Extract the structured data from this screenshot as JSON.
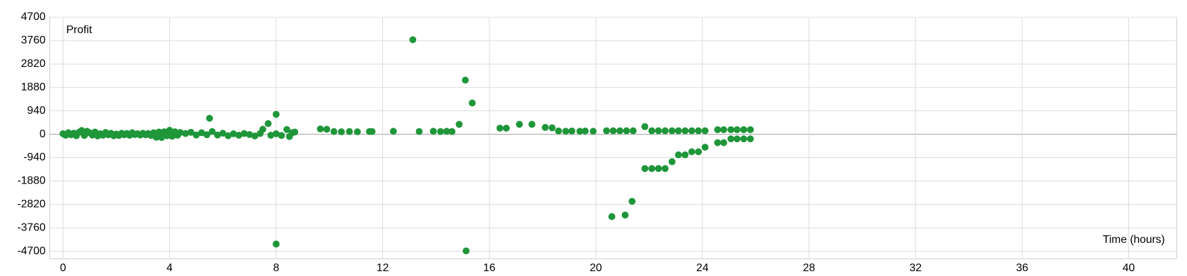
{
  "chart_data": {
    "type": "scatter",
    "y_label": "Profit",
    "x_label": "Time (hours)",
    "color": "#1e9639",
    "grid": true,
    "xlim": [
      -0.5,
      41.8
    ],
    "xticks": [
      0,
      4,
      8,
      12,
      16,
      20,
      24,
      28,
      32,
      36,
      40
    ],
    "ylim": [
      -5000,
      4700
    ],
    "yticks": [
      -4700,
      -3760,
      -2820,
      -1880,
      -940,
      0,
      940,
      1880,
      2820,
      3760,
      4700
    ],
    "x": [
      0,
      0.1,
      0.2,
      0.3,
      0.4,
      0.5,
      0.6,
      0.7,
      0.8,
      0.9,
      1.0,
      1.1,
      1.2,
      1.3,
      1.4,
      1.5,
      1.6,
      1.7,
      1.8,
      1.9,
      2.0,
      2.1,
      2.2,
      2.3,
      2.4,
      2.5,
      2.6,
      2.7,
      2.8,
      2.9,
      3.0,
      3.1,
      3.2,
      3.3,
      3.4,
      3.5,
      3.6,
      3.7,
      3.8,
      3.9,
      4.0,
      4.1,
      4.2,
      4.3,
      4.4,
      4.6,
      4.8,
      5.0,
      5.2,
      5.4,
      5.5,
      5.6,
      5.8,
      6.0,
      6.2,
      6.4,
      6.6,
      6.8,
      7.0,
      7.2,
      7.4,
      7.5,
      7.7,
      7.8,
      8.0,
      8.0,
      8.0,
      8.2,
      8.4,
      8.5,
      8.6,
      8.7,
      9.66,
      9.9,
      10.17,
      10.45,
      10.75,
      11.05,
      11.5,
      11.6,
      12.4,
      13.13,
      13.37,
      13.9,
      14.17,
      14.4,
      14.6,
      14.87,
      15.1,
      15.13,
      15.36,
      16.4,
      16.64,
      17.13,
      17.6,
      18.1,
      18.36,
      18.6,
      18.87,
      19.1,
      19.4,
      19.6,
      19.9,
      20.4,
      20.6,
      20.65,
      20.9,
      21.1,
      21.15,
      21.36,
      21.4,
      21.84,
      21.84,
      22.1,
      22.1,
      22.35,
      22.35,
      22.6,
      22.6,
      22.86,
      22.86,
      23.1,
      23.1,
      23.35,
      23.35,
      23.6,
      23.6,
      23.85,
      23.85,
      24.1,
      24.1,
      24.57,
      24.57,
      24.8,
      24.8,
      25.07,
      25.07,
      25.3,
      25.3,
      25.55,
      25.55,
      25.8,
      25.8
    ],
    "values": [
      20,
      -40,
      60,
      -20,
      40,
      -60,
      80,
      150,
      -50,
      120,
      60,
      -30,
      90,
      -70,
      20,
      -40,
      70,
      -20,
      40,
      -60,
      10,
      -50,
      40,
      -20,
      30,
      -40,
      60,
      -10,
      20,
      -30,
      40,
      -20,
      30,
      -50,
      60,
      -120,
      90,
      -130,
      100,
      -60,
      160,
      -80,
      100,
      -40,
      70,
      30,
      80,
      -30,
      60,
      -20,
      643,
      110,
      -30,
      40,
      -60,
      20,
      -40,
      30,
      -10,
      -70,
      30,
      200,
      430,
      -40,
      800,
      -4409,
      20,
      -50,
      190,
      -90,
      60,
      90,
      214,
      200,
      110,
      100,
      110,
      100,
      110,
      110,
      120,
      3797,
      110,
      120,
      110,
      120,
      110,
      400,
      2174,
      -4685,
      1255,
      245,
      245,
      400,
      400,
      275,
      260,
      130,
      120,
      130,
      120,
      130,
      120,
      140,
      -3307,
      140,
      140,
      -3245,
      140,
      -2694,
      140,
      306,
      -1378,
      140,
      -1378,
      140,
      -1378,
      140,
      -1378,
      140,
      -1102,
      140,
      -827,
      140,
      -827,
      140,
      -704,
      140,
      -704,
      140,
      -520,
      184,
      -337,
      184,
      -337,
      184,
      -184,
      184,
      -184,
      184,
      -184,
      184,
      -184
    ]
  }
}
